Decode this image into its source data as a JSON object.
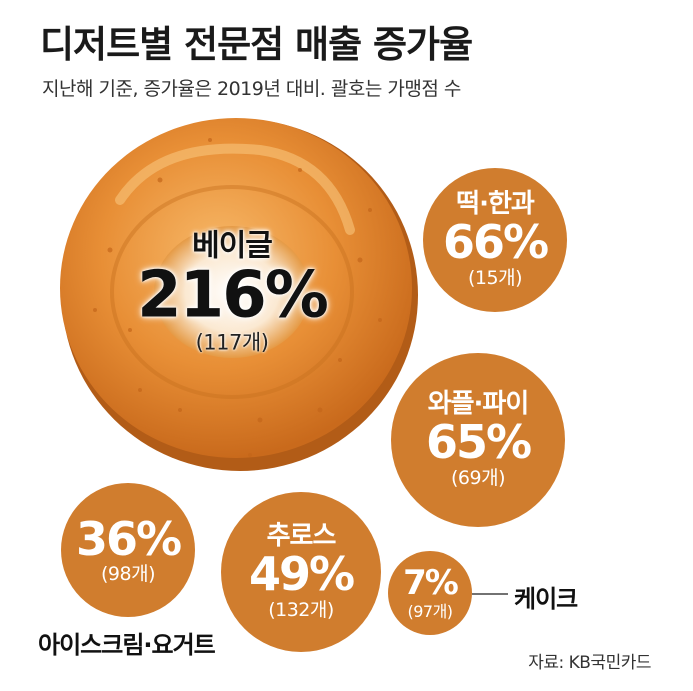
{
  "title": "디저트별 전문점 매출 증가율",
  "subtitle": "지난해 기준, 증가율은 2019년 대비. 괄호는 가맹점 수",
  "source": "자료: KB국민카드",
  "colors": {
    "bubble": "#d07d2e",
    "bagel_light": "#f3a64f",
    "bagel_dark": "#d47522",
    "bagel_shadow": "#b45d16"
  },
  "chart_data": {
    "type": "bubble",
    "title": "디저트별 전문점 매출 증가율",
    "items": [
      {
        "category": "베이글",
        "growth_pct": 216,
        "growth_label": "216%",
        "stores": 117,
        "stores_label": "(117개)"
      },
      {
        "category": "떡·한과",
        "growth_pct": 66,
        "growth_label": "66%",
        "stores": 15,
        "stores_label": "(15개)"
      },
      {
        "category": "와플·파이",
        "growth_pct": 65,
        "growth_label": "65%",
        "stores": 69,
        "stores_label": "(69개)"
      },
      {
        "category": "아이스크림·요거트",
        "growth_pct": 36,
        "growth_label": "36%",
        "stores": 98,
        "stores_label": "(98개)"
      },
      {
        "category": "추로스",
        "growth_pct": 49,
        "growth_label": "49%",
        "stores": 132,
        "stores_label": "(132개)"
      },
      {
        "category": "케이크",
        "growth_pct": 7,
        "growth_label": "7%",
        "stores": 97,
        "stores_label": "(97개)"
      }
    ]
  }
}
